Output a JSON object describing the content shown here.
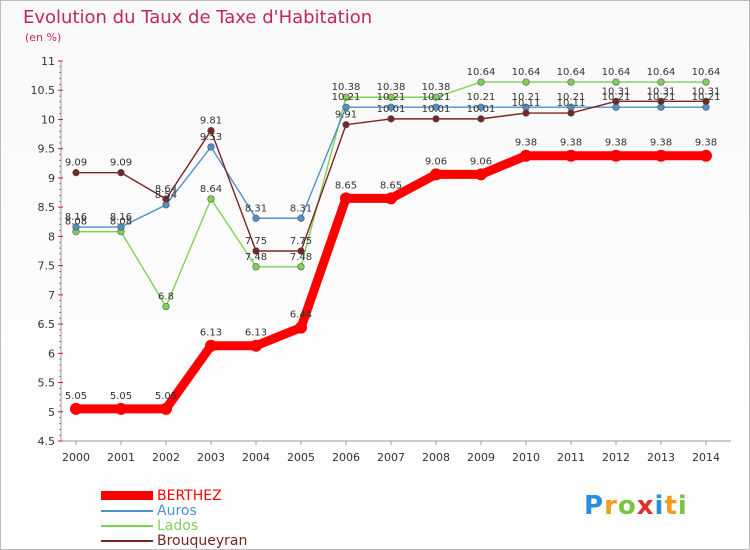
{
  "header": {
    "title": "Evolution du Taux de Taxe d'Habitation",
    "subtitle": "(en %)"
  },
  "logo": {
    "letters": [
      "P",
      "r",
      "o",
      "x",
      "i",
      "t",
      "i"
    ],
    "colors": [
      "#2a8fd6",
      "#f29b1d",
      "#7cc243",
      "#e0322b",
      "#2a8fd6",
      "#f29b1d",
      "#7cc243"
    ]
  },
  "chart_data": {
    "type": "line",
    "x": [
      "2000",
      "2001",
      "2002",
      "2003",
      "2004",
      "2005",
      "2006",
      "2007",
      "2008",
      "2009",
      "2010",
      "2011",
      "2012",
      "2013",
      "2014"
    ],
    "ylim": [
      4.5,
      11
    ],
    "yticks": [
      "4.5",
      "5",
      "5.5",
      "6",
      "6.5",
      "7",
      "7.5",
      "8",
      "8.5",
      "9",
      "9.5",
      "10",
      "10.5",
      "11"
    ],
    "grid": false,
    "legend_position": "bottom-left",
    "series": [
      {
        "name": "BERTHEZ",
        "color": "#ff0000",
        "values": [
          5.05,
          5.05,
          5.05,
          6.13,
          6.13,
          6.44,
          8.65,
          8.65,
          9.06,
          9.06,
          9.38,
          9.38,
          9.38,
          9.38,
          9.38
        ],
        "labels": [
          "5.05",
          "5.05",
          "5.05",
          "6.13",
          "6.13",
          "6.44",
          "8.65",
          "8.65",
          "9.06",
          "9.06",
          "9.38",
          "9.38",
          "9.38",
          "9.38",
          "9.38"
        ]
      },
      {
        "name": "Auros",
        "color": "#4f91c9",
        "values": [
          8.16,
          8.16,
          8.54,
          9.53,
          8.31,
          8.31,
          10.21,
          10.21,
          10.21,
          10.21,
          10.21,
          10.21,
          10.21,
          10.21,
          10.21
        ],
        "labels": [
          "8.16",
          "8.16",
          "8.54",
          "9.53",
          "8.31",
          "8.31",
          "10.21",
          "10.21",
          "10.21",
          "10.21",
          "10.21",
          "10.21",
          "10.21",
          "10.21",
          "10.21"
        ]
      },
      {
        "name": "Lados",
        "color": "#7fd154",
        "values": [
          8.08,
          8.08,
          6.8,
          8.64,
          7.48,
          7.48,
          10.38,
          10.38,
          10.38,
          10.64,
          10.64,
          10.64,
          10.64,
          10.64,
          10.64
        ],
        "labels": [
          "8.08",
          "8.08",
          "6.8",
          "8.64",
          "7.48",
          "7.48",
          "10.38",
          "10.38",
          "10.38",
          "10.64",
          "10.64",
          "10.64",
          "10.64",
          "10.64",
          "10.64"
        ]
      },
      {
        "name": "Brouqueyran",
        "color": "#7a2424",
        "values": [
          9.09,
          9.09,
          8.64,
          9.81,
          7.75,
          7.75,
          9.91,
          10.01,
          10.01,
          10.01,
          10.11,
          10.11,
          10.31,
          10.31,
          10.31
        ],
        "labels": [
          "9.09",
          "9.09",
          "8.64",
          "9.81",
          "7.75",
          "7.75",
          "9.91",
          "10.01",
          "10.01",
          "10.01",
          "10.11",
          "10.11",
          "10.31",
          "10.31",
          "10.31"
        ]
      }
    ]
  }
}
